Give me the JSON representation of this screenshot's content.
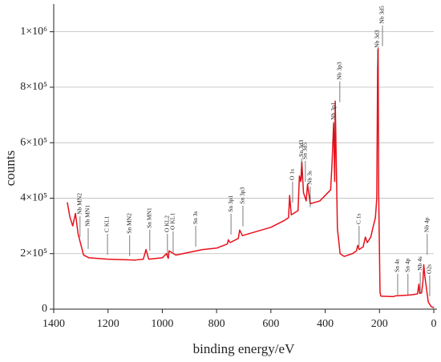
{
  "chart_data": {
    "type": "line",
    "xlabel": "binding energy/eV",
    "ylabel": "counts",
    "color": "#e8101a",
    "grid": true,
    "xlim": [
      1400,
      0
    ],
    "xticks": [
      1400,
      1200,
      1000,
      800,
      600,
      400,
      200,
      0
    ],
    "ylim": [
      0,
      1100000
    ],
    "yticks": [
      0,
      {
        "value": 200000,
        "label": "2×10⁵"
      },
      {
        "value": 400000,
        "label": "4×10⁵"
      },
      {
        "value": 600000,
        "label": "6×10⁵"
      },
      {
        "value": 800000,
        "label": "8×10⁵"
      },
      {
        "value": 1000000,
        "label": "1×10⁶"
      }
    ],
    "x": [
      1350,
      1340,
      1330,
      1320,
      1310,
      1290,
      1270,
      1200,
      1100,
      1070,
      1060,
      1050,
      1000,
      985,
      978,
      975,
      950,
      900,
      850,
      800,
      760,
      757,
      750,
      720,
      715,
      705,
      600,
      550,
      535,
      531,
      525,
      500,
      495,
      490,
      486,
      480,
      470,
      465,
      455,
      420,
      380,
      375,
      369,
      365,
      363,
      355,
      345,
      330,
      300,
      285,
      280,
      275,
      260,
      252,
      245,
      232,
      225,
      215,
      210,
      207,
      205,
      203,
      200,
      198,
      195,
      150,
      140,
      100,
      80,
      60,
      55,
      52,
      45,
      40,
      37,
      33,
      25,
      20,
      10,
      0
    ],
    "values": [
      385000,
      330000,
      300000,
      345000,
      270000,
      195000,
      185000,
      180000,
      177000,
      180000,
      215000,
      180000,
      185000,
      200000,
      183000,
      210000,
      195000,
      205000,
      215000,
      220000,
      235000,
      250000,
      240000,
      255000,
      285000,
      265000,
      295000,
      320000,
      330000,
      410000,
      340000,
      355000,
      480000,
      460000,
      530000,
      420000,
      390000,
      450000,
      380000,
      390000,
      430000,
      520000,
      670000,
      460000,
      750000,
      290000,
      200000,
      190000,
      200000,
      210000,
      230000,
      215000,
      225000,
      260000,
      240000,
      260000,
      290000,
      330000,
      400000,
      860000,
      940000,
      420000,
      200000,
      60000,
      47000,
      45000,
      48000,
      50000,
      52000,
      55000,
      90000,
      57000,
      58000,
      100000,
      160000,
      120000,
      60000,
      25000,
      10000,
      5000
    ],
    "annotations": [
      {
        "label": "Nb MN2",
        "x": 1303,
        "y": 341000
      },
      {
        "label": "Nb MN1",
        "x": 1273,
        "y": 298000
      },
      {
        "label": "C KL1",
        "x": 1202,
        "y": 277000
      },
      {
        "label": "Sn MN2",
        "x": 1120,
        "y": 272000
      },
      {
        "label": "Sn MN1",
        "x": 1046,
        "y": 292000
      },
      {
        "label": "O KL2",
        "x": 981,
        "y": 277000
      },
      {
        "label": "O KL1",
        "x": 960,
        "y": 286000
      },
      {
        "label": "Sn 3s",
        "x": 877,
        "y": 306000
      },
      {
        "label": "Sn 3p1",
        "x": 747,
        "y": 350000
      },
      {
        "label": "Sn 3p3",
        "x": 703,
        "y": 379000
      },
      {
        "label": "O 1s",
        "x": 520,
        "y": 465000
      },
      {
        "label": "Sn 3d3",
        "x": 487,
        "y": 549000
      },
      {
        "label": "Sn 3d5",
        "x": 473,
        "y": 540000
      },
      {
        "label": "Nb 3s",
        "x": 455,
        "y": 448000
      },
      {
        "label": "Nb 3p1",
        "x": 369,
        "y": 682000
      },
      {
        "label": "Nb 3p3",
        "x": 346,
        "y": 827000
      },
      {
        "label": "C 1s",
        "x": 275,
        "y": 306000
      },
      {
        "label": "Nb 3d3",
        "x": 207,
        "y": 942000
      },
      {
        "label": "Nb 3d5",
        "x": 189,
        "y": 1029000
      },
      {
        "label": "Sn 4s",
        "x": 133,
        "y": 133000
      },
      {
        "label": "Sn 4p",
        "x": 95,
        "y": 133000
      },
      {
        "label": "Nb 4s",
        "x": 50,
        "y": 139000
      },
      {
        "label": "Nb 4p",
        "x": 24,
        "y": 277000
      },
      {
        "label": "O2s",
        "x": 15,
        "y": 127000
      }
    ]
  }
}
